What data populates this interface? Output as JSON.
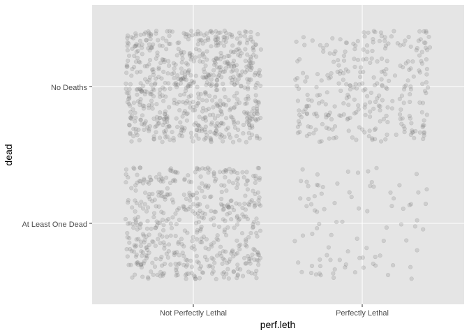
{
  "chart_data": {
    "type": "scatter",
    "jitter": true,
    "xlabel": "perf.leth",
    "ylabel": "dead",
    "x_categories": [
      "Not Perfectly Lethal",
      "Perfectly Lethal"
    ],
    "y_categories": [
      "At Least One Dead",
      "No Deaths"
    ],
    "cells": [
      {
        "x": "Not Perfectly Lethal",
        "y": "No Deaths",
        "count": 700
      },
      {
        "x": "Not Perfectly Lethal",
        "y": "At Least One Dead",
        "count": 520
      },
      {
        "x": "Perfectly Lethal",
        "y": "No Deaths",
        "count": 300
      },
      {
        "x": "Perfectly Lethal",
        "y": "At Least One Dead",
        "count": 90
      }
    ],
    "grid": true,
    "legend": "none",
    "colors": {
      "panel": "#e5e5e5",
      "gridline": "#ffffff",
      "point": "#808080",
      "point_outline": "#5a5a5a"
    }
  }
}
